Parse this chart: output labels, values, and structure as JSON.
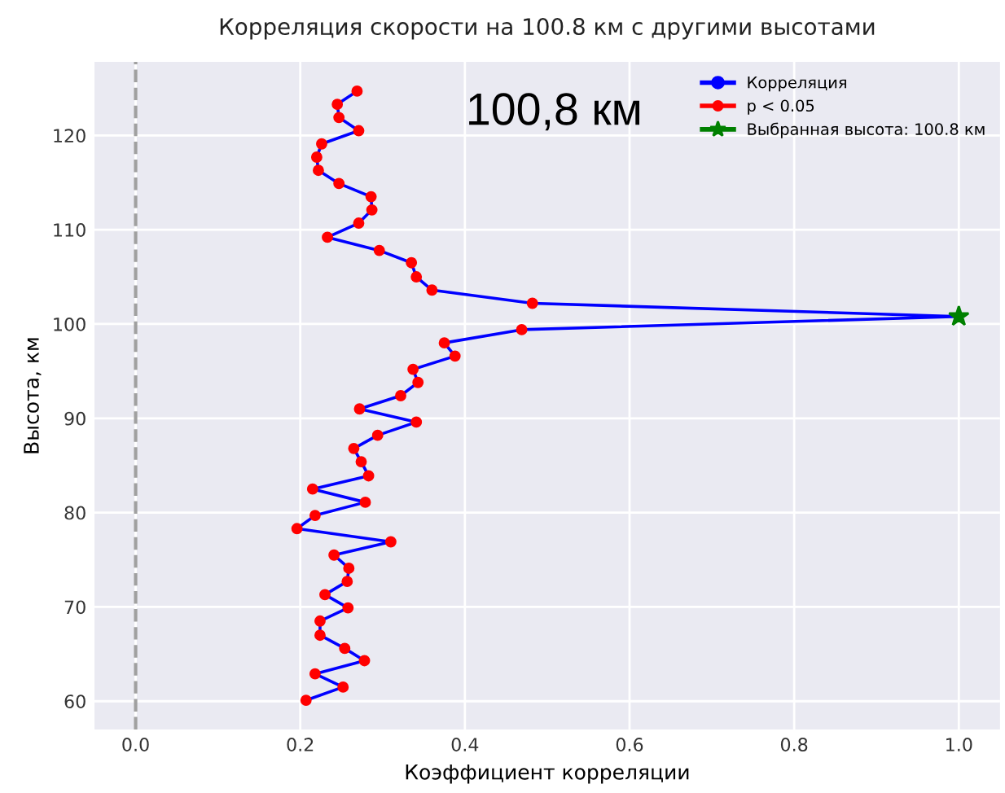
{
  "chart_data": {
    "type": "line",
    "title": "Корреляция скорости на 100.8 км с другими высотами",
    "xlabel": "Коэффициент корреляции",
    "ylabel": "Высота, км",
    "series": [
      {
        "name": "Корреляция",
        "type": "line",
        "color": "#0000ff",
        "marker": "circle",
        "x": [
          0.269,
          0.245,
          0.247,
          0.271,
          0.226,
          0.22,
          0.222,
          0.247,
          0.286,
          0.287,
          0.271,
          0.233,
          0.296,
          0.335,
          0.341,
          0.36,
          0.482,
          1.0,
          0.469,
          0.375,
          0.388,
          0.337,
          0.343,
          0.322,
          0.272,
          0.341,
          0.294,
          0.265,
          0.274,
          0.283,
          0.215,
          0.279,
          0.218,
          0.196,
          0.31,
          0.241,
          0.259,
          0.257,
          0.23,
          0.258,
          0.224,
          0.224,
          0.254,
          0.278,
          0.218,
          0.252,
          0.207
        ],
        "values": [
          124.7,
          123.3,
          121.9,
          120.5,
          119.1,
          117.7,
          116.3,
          114.9,
          113.5,
          112.1,
          110.7,
          109.2,
          107.8,
          106.5,
          105.0,
          103.6,
          102.2,
          100.8,
          99.4,
          98.0,
          96.6,
          95.2,
          93.8,
          92.4,
          91.0,
          89.6,
          88.2,
          86.8,
          85.4,
          83.9,
          82.5,
          81.1,
          79.7,
          78.3,
          76.9,
          75.5,
          74.1,
          72.7,
          71.3,
          69.9,
          68.5,
          67.0,
          65.6,
          64.3,
          62.9,
          61.5,
          60.1
        ]
      },
      {
        "name": "p < 0.05",
        "type": "scatter",
        "color": "#ff0000",
        "marker": "circle",
        "x": [
          0.269,
          0.245,
          0.247,
          0.271,
          0.226,
          0.22,
          0.222,
          0.247,
          0.286,
          0.287,
          0.271,
          0.233,
          0.296,
          0.335,
          0.341,
          0.36,
          0.482,
          0.469,
          0.375,
          0.388,
          0.337,
          0.343,
          0.322,
          0.272,
          0.341,
          0.294,
          0.265,
          0.274,
          0.283,
          0.215,
          0.279,
          0.218,
          0.196,
          0.31,
          0.241,
          0.259,
          0.257,
          0.23,
          0.258,
          0.224,
          0.224,
          0.254,
          0.278,
          0.218,
          0.252,
          0.207
        ],
        "values": [
          124.7,
          123.3,
          121.9,
          120.5,
          119.1,
          117.7,
          116.3,
          114.9,
          113.5,
          112.1,
          110.7,
          109.2,
          107.8,
          106.5,
          105.0,
          103.6,
          102.2,
          99.4,
          98.0,
          96.6,
          95.2,
          93.8,
          92.4,
          91.0,
          89.6,
          88.2,
          86.8,
          85.4,
          83.9,
          82.5,
          81.1,
          79.7,
          78.3,
          76.9,
          75.5,
          74.1,
          72.7,
          71.3,
          69.9,
          68.5,
          67.0,
          65.6,
          64.3,
          62.9,
          61.5,
          60.1
        ]
      },
      {
        "name": "Выбранная высота: 100.8 км",
        "type": "scatter",
        "color": "#008000",
        "marker": "star",
        "x": [
          1.0
        ],
        "values": [
          100.8
        ]
      }
    ],
    "xlim": [
      -0.05,
      1.05
    ],
    "xticks": [
      {
        "value": 0,
        "label": "0.0"
      },
      0.2,
      0.4,
      0.6,
      0.8,
      {
        "value": 1,
        "label": "1.0"
      }
    ],
    "ylim": [
      57,
      127.8
    ],
    "yticks": [
      60,
      70,
      80,
      90,
      100,
      110,
      120
    ],
    "ref_lines": [
      {
        "axis": "x",
        "value": 0,
        "color": "#a0a0a0",
        "line_style": "dashed"
      }
    ],
    "annotations": [
      "100,8 км"
    ],
    "grid": true,
    "legend": "top right"
  }
}
